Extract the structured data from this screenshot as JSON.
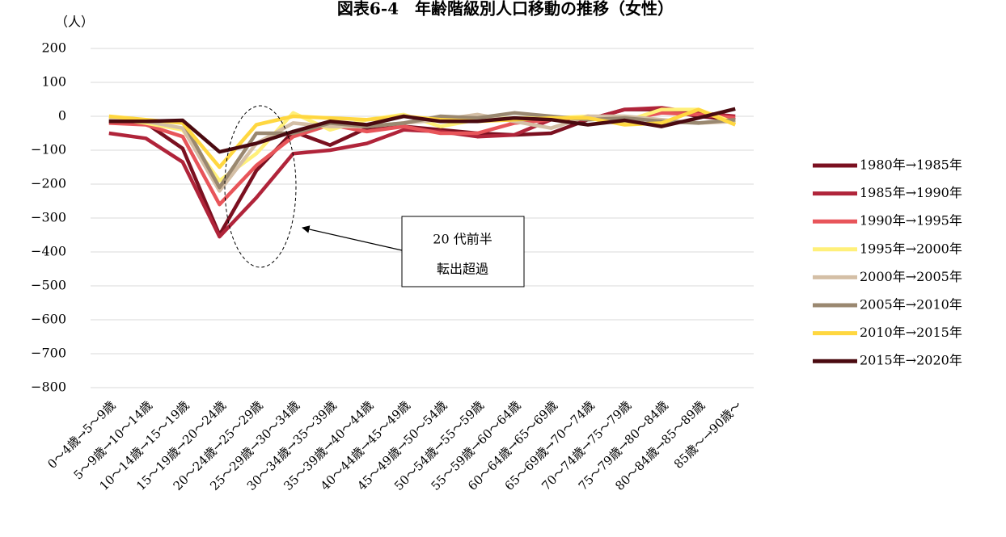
{
  "chart_data": {
    "type": "line",
    "title": "図表6-4　年齢階級別人口移動の推移（女性）",
    "y_label": "（人）",
    "categories": [
      "0～4歳→5～9歳",
      "5～9歳→10～14歳",
      "10～14歳→15～19歳",
      "15～19歳→20～24歳",
      "20～24歳→25～29歳",
      "25～29歳→30～34歳",
      "30～34歳→35～39歳",
      "35～39歳→40～44歳",
      "40～44歳→45～49歳",
      "45～49歳→50～54歳",
      "50～54歳→55～59歳",
      "55～59歳→60～64歳",
      "60～64歳→65～69歳",
      "65～69歳→70～74歳",
      "70～74歳→75～79歳",
      "75～79歳→80～84歳",
      "80～84歳→85～89歳",
      "85歳～→90歳～"
    ],
    "series": [
      {
        "name": "1980年→1985年",
        "color": "#7b1020",
        "values": [
          -15,
          -20,
          -95,
          -350,
          -160,
          -45,
          -85,
          -35,
          -30,
          -40,
          -50,
          -55,
          -50,
          -10,
          20,
          20,
          0,
          -10
        ]
      },
      {
        "name": "1985年→1990年",
        "color": "#b0243a",
        "values": [
          -50,
          -65,
          -135,
          -355,
          -240,
          -110,
          -100,
          -80,
          -40,
          -45,
          -60,
          -55,
          -10,
          -10,
          20,
          25,
          10,
          0
        ]
      },
      {
        "name": "1990年→1995年",
        "color": "#e8555a",
        "values": [
          -20,
          -25,
          -60,
          -260,
          -145,
          -60,
          -25,
          -45,
          -30,
          -50,
          -50,
          -20,
          -10,
          0,
          -10,
          10,
          5,
          -5
        ]
      },
      {
        "name": "1995年→2000年",
        "color": "#fff07a",
        "values": [
          -5,
          -20,
          -40,
          -190,
          -110,
          10,
          -40,
          -10,
          5,
          -30,
          -10,
          -5,
          -5,
          0,
          -15,
          20,
          20,
          -20
        ]
      },
      {
        "name": "2000年→2005年",
        "color": "#d4bfa6",
        "values": [
          -10,
          -15,
          -35,
          -220,
          -80,
          -20,
          -30,
          -30,
          -20,
          -10,
          5,
          -15,
          -35,
          0,
          0,
          -10,
          -20,
          -15
        ]
      },
      {
        "name": "2005年→2010年",
        "color": "#9a8870",
        "values": [
          -15,
          -15,
          -15,
          -210,
          -50,
          -50,
          -20,
          -30,
          -20,
          0,
          -5,
          10,
          0,
          -10,
          -5,
          -15,
          -20,
          -10
        ]
      },
      {
        "name": "2010年→2015年",
        "color": "#ffd740",
        "values": [
          0,
          -10,
          -20,
          -150,
          -25,
          0,
          -5,
          -10,
          0,
          -10,
          -15,
          -10,
          -5,
          -5,
          -25,
          -20,
          20,
          -25
        ]
      },
      {
        "name": "2015年→2020年",
        "color": "#4a0a10",
        "values": [
          -15,
          -15,
          -12,
          -105,
          -80,
          -45,
          -15,
          -25,
          0,
          -15,
          -15,
          -5,
          -10,
          -25,
          -12,
          -30,
          -5,
          22
        ]
      }
    ],
    "ylim": [
      -800,
      200
    ],
    "yticks": [
      {
        "value": -800,
        "label": "−800"
      },
      {
        "value": -700,
        "label": "−700"
      },
      {
        "value": -600,
        "label": "−600"
      },
      {
        "value": -500,
        "label": "−500"
      },
      {
        "value": -400,
        "label": "−400"
      },
      {
        "value": -300,
        "label": "−300"
      },
      {
        "value": -200,
        "label": "−200"
      },
      {
        "value": -100,
        "label": "−100"
      },
      0,
      100,
      200
    ],
    "grid": true,
    "legend": "right",
    "annotation": [
      "20 代前半",
      "転出超過"
    ]
  }
}
